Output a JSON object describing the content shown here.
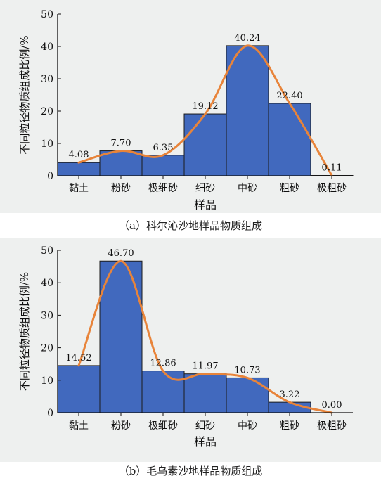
{
  "chart_data": [
    {
      "type": "bar",
      "caption": "（a）科尔沁沙地样品物质组成",
      "categories": [
        "黏土",
        "粉砂",
        "极细砂",
        "细砂",
        "中砂",
        "粗砂",
        "极粗砂"
      ],
      "values": [
        4.08,
        7.7,
        6.35,
        19.12,
        40.24,
        22.4,
        0.11
      ],
      "value_labels": [
        "4.08",
        "7.70",
        "6.35",
        "19.12",
        "40.24",
        "22.40",
        "0.11"
      ],
      "xlabel": "样品",
      "ylabel": "不同粒径物质组成比例/%",
      "ylim": [
        0,
        50
      ],
      "yticks": [
        "0",
        "10",
        "20",
        "30",
        "40",
        "50"
      ],
      "bar_color": "#4169be",
      "curve_color": "#e8843a",
      "grid": false
    },
    {
      "type": "bar",
      "caption": "（b）毛乌素沙地样品物质组成",
      "categories": [
        "黏土",
        "粉砂",
        "极细砂",
        "细砂",
        "中砂",
        "粗砂",
        "极粗砂"
      ],
      "values": [
        14.52,
        46.7,
        12.86,
        11.97,
        10.73,
        3.22,
        0.0
      ],
      "value_labels": [
        "14.52",
        "46.70",
        "12.86",
        "11.97",
        "10.73",
        "3.22",
        "0.00"
      ],
      "xlabel": "样品",
      "ylabel": "不同粒径物质组成比例/%",
      "ylim": [
        0,
        50
      ],
      "yticks": [
        "0",
        "10",
        "20",
        "30",
        "40",
        "50"
      ],
      "bar_color": "#4169be",
      "curve_color": "#e8843a",
      "grid": false
    }
  ]
}
